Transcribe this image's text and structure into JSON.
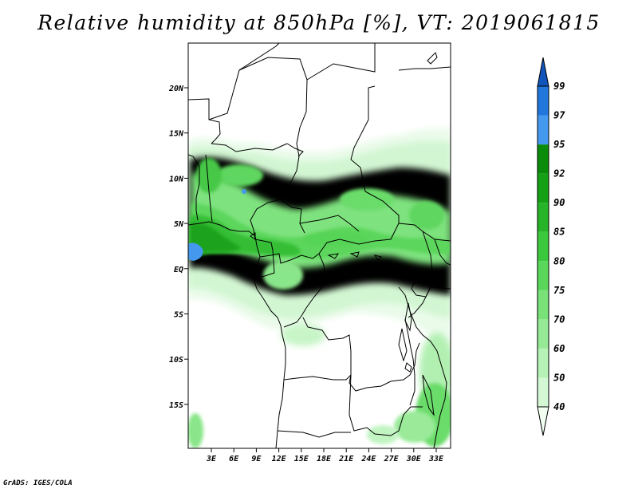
{
  "title": "Relative humidity at 850hPa [%], VT: 2019061815",
  "credit": "GrADS: IGES/COLA",
  "map": {
    "lat_labels": [
      "20N",
      "15N",
      "10N",
      "5N",
      "EQ",
      "5S",
      "10S",
      "15S"
    ],
    "lon_labels": [
      "3E",
      "6E",
      "9E",
      "12E",
      "15E",
      "18E",
      "21E",
      "24E",
      "27E",
      "30E",
      "33E"
    ]
  },
  "colorbar": {
    "levels": [
      "40",
      "50",
      "60",
      "70",
      "75",
      "80",
      "85",
      "90",
      "92",
      "95",
      "97",
      "99"
    ],
    "colors": [
      "#f0fff0",
      "#d4f8d4",
      "#b6f2b6",
      "#96ea96",
      "#78e178",
      "#5ad75a",
      "#3cc83c",
      "#28b428",
      "#16a016",
      "#0a8c0a",
      "#4499ee",
      "#2277dd",
      "#1155bb"
    ]
  }
}
